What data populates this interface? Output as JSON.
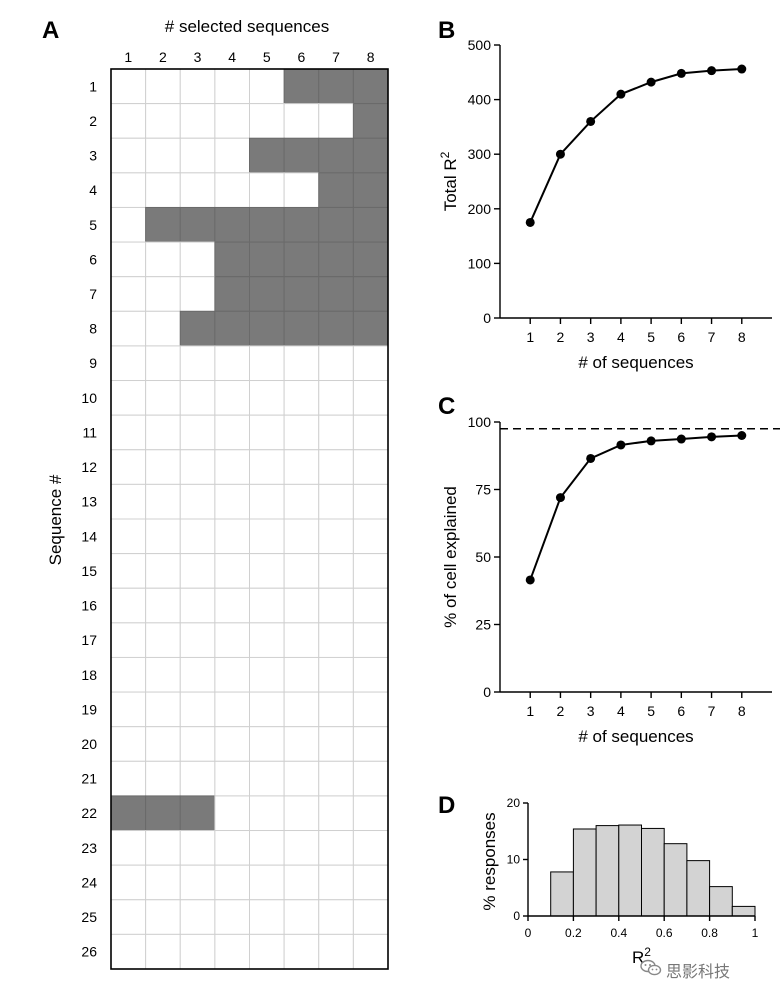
{
  "panels": {
    "A": {
      "letter": "A",
      "top_label": "# selected sequences",
      "side_label": "Sequence #",
      "columns": [
        "1",
        "2",
        "3",
        "4",
        "5",
        "6",
        "7",
        "8"
      ],
      "rows": [
        "1",
        "2",
        "3",
        "4",
        "5",
        "6",
        "7",
        "8",
        "9",
        "10",
        "11",
        "12",
        "13",
        "14",
        "15",
        "16",
        "17",
        "18",
        "19",
        "20",
        "21",
        "22",
        "23",
        "24",
        "25",
        "26"
      ]
    },
    "B": {
      "letter": "B"
    },
    "C": {
      "letter": "C"
    },
    "D": {
      "letter": "D"
    }
  },
  "chart_data": [
    {
      "panel": "A",
      "type": "heatmap",
      "xlabel": "# selected sequences",
      "ylabel": "Sequence #",
      "x": [
        1,
        2,
        3,
        4,
        5,
        6,
        7,
        8
      ],
      "y": [
        1,
        2,
        3,
        4,
        5,
        6,
        7,
        8,
        9,
        10,
        11,
        12,
        13,
        14,
        15,
        16,
        17,
        18,
        19,
        20,
        21,
        22,
        23,
        24,
        25,
        26
      ],
      "selected": {
        "1": [
          6,
          7,
          8
        ],
        "2": [
          8
        ],
        "3": [
          5,
          6,
          7,
          8
        ],
        "4": [
          7,
          8
        ],
        "5": [
          2,
          3,
          4,
          5,
          6,
          7,
          8
        ],
        "6": [
          4,
          5,
          6,
          7,
          8
        ],
        "7": [
          4,
          5,
          6,
          7,
          8
        ],
        "8": [
          3,
          4,
          5,
          6,
          7,
          8
        ],
        "22": [
          1,
          2,
          3
        ]
      },
      "selected_color": "#7a7a7a",
      "unselected_color": "#ffffff"
    },
    {
      "panel": "B",
      "type": "line",
      "x": [
        1,
        2,
        3,
        4,
        5,
        6,
        7,
        8
      ],
      "series": [
        {
          "values": [
            175,
            300,
            360,
            410,
            432,
            448,
            453,
            456
          ]
        }
      ],
      "xlabel": "# of sequences",
      "ylabel": "Total R",
      "ylabel_superscript": "2",
      "xlim": [
        0,
        9
      ],
      "ylim": [
        0,
        500
      ],
      "yticks": [
        0,
        100,
        200,
        300,
        400,
        500
      ],
      "xticks": [
        1,
        2,
        3,
        4,
        5,
        6,
        7,
        8
      ]
    },
    {
      "panel": "C",
      "type": "line",
      "x": [
        1,
        2,
        3,
        4,
        5,
        6,
        7,
        8
      ],
      "series": [
        {
          "values": [
            41.5,
            72,
            86.5,
            91.5,
            93,
            93.7,
            94.5,
            95
          ]
        }
      ],
      "reference_line": {
        "y": 97.5,
        "style": "dashed"
      },
      "xlabel": "# of sequences",
      "ylabel": "% of cell explained",
      "xlim": [
        0,
        9
      ],
      "ylim": [
        0,
        100
      ],
      "yticks": [
        0,
        25,
        50,
        75,
        100
      ],
      "xticks": [
        1,
        2,
        3,
        4,
        5,
        6,
        7,
        8
      ]
    },
    {
      "panel": "D",
      "type": "bar",
      "bin_edges": [
        0.1,
        0.2,
        0.3,
        0.4,
        0.5,
        0.6,
        0.7,
        0.8,
        0.9,
        1.0
      ],
      "values": [
        7.8,
        15.4,
        16,
        16.1,
        15.5,
        12.8,
        9.8,
        5.2,
        1.7
      ],
      "xlabel": "R",
      "xlabel_superscript": "2",
      "ylabel": "% responses",
      "xlim": [
        0,
        1
      ],
      "ylim": [
        0,
        20
      ],
      "xticks": [
        "0",
        "0.2",
        "0.4",
        "0.6",
        "0.8",
        "1"
      ],
      "yticks": [
        "0",
        "10",
        "20"
      ],
      "bar_color": "#d3d3d3"
    }
  ],
  "watermark": {
    "icon": "wechat-icon",
    "text": "思影科技"
  }
}
